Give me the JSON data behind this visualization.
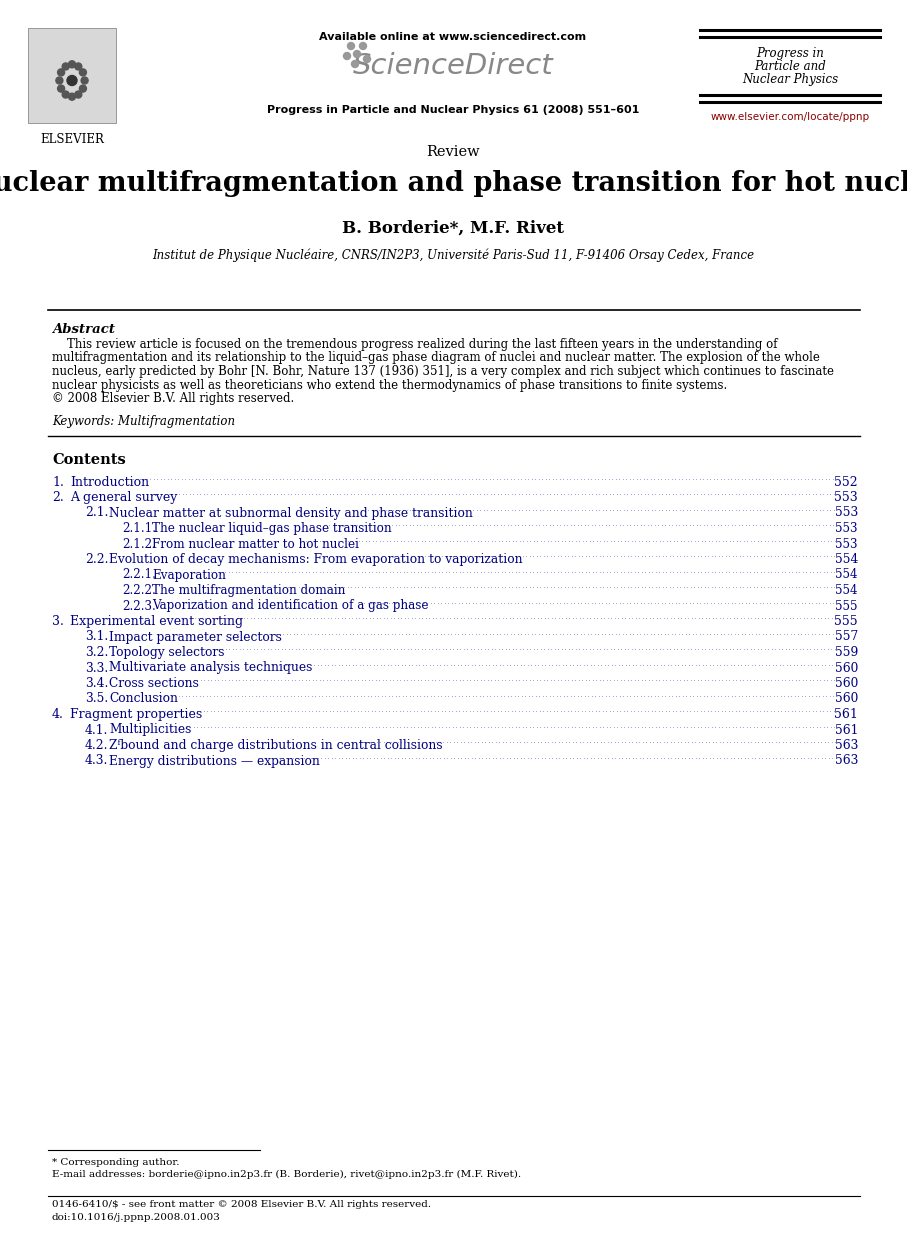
{
  "bg_color": "#ffffff",
  "header": {
    "available_online": "Available online at www.sciencedirect.com",
    "sciencedirect": "ScienceDirect",
    "journal_ref": "Progress in Particle and Nuclear Physics 61 (2008) 551–601",
    "journal_name_right": [
      "Progress in",
      "Particle and",
      "Nuclear Physics"
    ],
    "url": "www.elsevier.com/locate/ppnp",
    "elsevier_text": "ELSEVIER"
  },
  "article_type": "Review",
  "title": "Nuclear multifragmentation and phase transition for hot nuclei",
  "authors": "B. Borderie*, M.F. Rivet",
  "affiliation": "Institut de Physique Nucléaire, CNRS/IN2P3, Université Paris-Sud 11, F-91406 Orsay Cedex, France",
  "abstract_label": "Abstract",
  "abstract_lines": [
    "    This review article is focused on the tremendous progress realized during the last fifteen years in the understanding of",
    "multifragmentation and its relationship to the liquid–gas phase diagram of nuclei and nuclear matter. The explosion of the whole",
    "nucleus, early predicted by Bohr [N. Bohr, Nature 137 (1936) 351], is a very complex and rich subject which continues to fascinate",
    "nuclear physicists as well as theoreticians who extend the thermodynamics of phase transitions to finite systems.",
    "© 2008 Elsevier B.V. All rights reserved."
  ],
  "keywords": "Keywords: Multifragmentation",
  "contents_label": "Contents",
  "toc": [
    {
      "num": "1.",
      "title": "Introduction",
      "page": "552",
      "level": 0
    },
    {
      "num": "2.",
      "title": "A general survey",
      "page": "553",
      "level": 0
    },
    {
      "num": "2.1.",
      "title": "Nuclear matter at subnormal density and phase transition",
      "page": "553",
      "level": 1
    },
    {
      "num": "2.1.1.",
      "title": "The nuclear liquid–gas phase transition",
      "page": "553",
      "level": 2
    },
    {
      "num": "2.1.2.",
      "title": "From nuclear matter to hot nuclei",
      "page": "553",
      "level": 2
    },
    {
      "num": "2.2.",
      "title": "Evolution of decay mechanisms: From evaporation to vaporization",
      "page": "554",
      "level": 1
    },
    {
      "num": "2.2.1.",
      "title": "Evaporation",
      "page": "554",
      "level": 2
    },
    {
      "num": "2.2.2.",
      "title": "The multifragmentation domain",
      "page": "554",
      "level": 2
    },
    {
      "num": "2.2.3.",
      "title": "Vaporization and identification of a gas phase",
      "page": "555",
      "level": 2
    },
    {
      "num": "3.",
      "title": "Experimental event sorting",
      "page": "555",
      "level": 0
    },
    {
      "num": "3.1.",
      "title": "Impact parameter selectors",
      "page": "557",
      "level": 1
    },
    {
      "num": "3.2.",
      "title": "Topology selectors",
      "page": "559",
      "level": 1
    },
    {
      "num": "3.3.",
      "title": "Multivariate analysis techniques",
      "page": "560",
      "level": 1
    },
    {
      "num": "3.4.",
      "title": "Cross sections",
      "page": "560",
      "level": 1
    },
    {
      "num": "3.5.",
      "title": "Conclusion",
      "page": "560",
      "level": 1
    },
    {
      "num": "4.",
      "title": "Fragment properties",
      "page": "561",
      "level": 0
    },
    {
      "num": "4.1.",
      "title": "Multiplicities",
      "page": "561",
      "level": 1
    },
    {
      "num": "4.2.",
      "title": "Zᶠbound and charge distributions in central collisions",
      "page": "563",
      "level": 1
    },
    {
      "num": "4.3.",
      "title": "Energy distributions — expansion",
      "page": "563",
      "level": 1
    }
  ],
  "footnote_star": "* Corresponding author.",
  "footnote_email": "E-mail addresses: borderie@ipno.in2p3.fr (B. Borderie), rivet@ipno.in2p3.fr (M.F. Rivet).",
  "footnote_issn": "0146-6410/$ - see front matter © 2008 Elsevier B.V. All rights reserved.",
  "footnote_doi": "doi:10.1016/j.ppnp.2008.01.003",
  "colors": {
    "toc_blue": "#000080",
    "dark_red_url": "#8B0000",
    "black": "#000000"
  }
}
